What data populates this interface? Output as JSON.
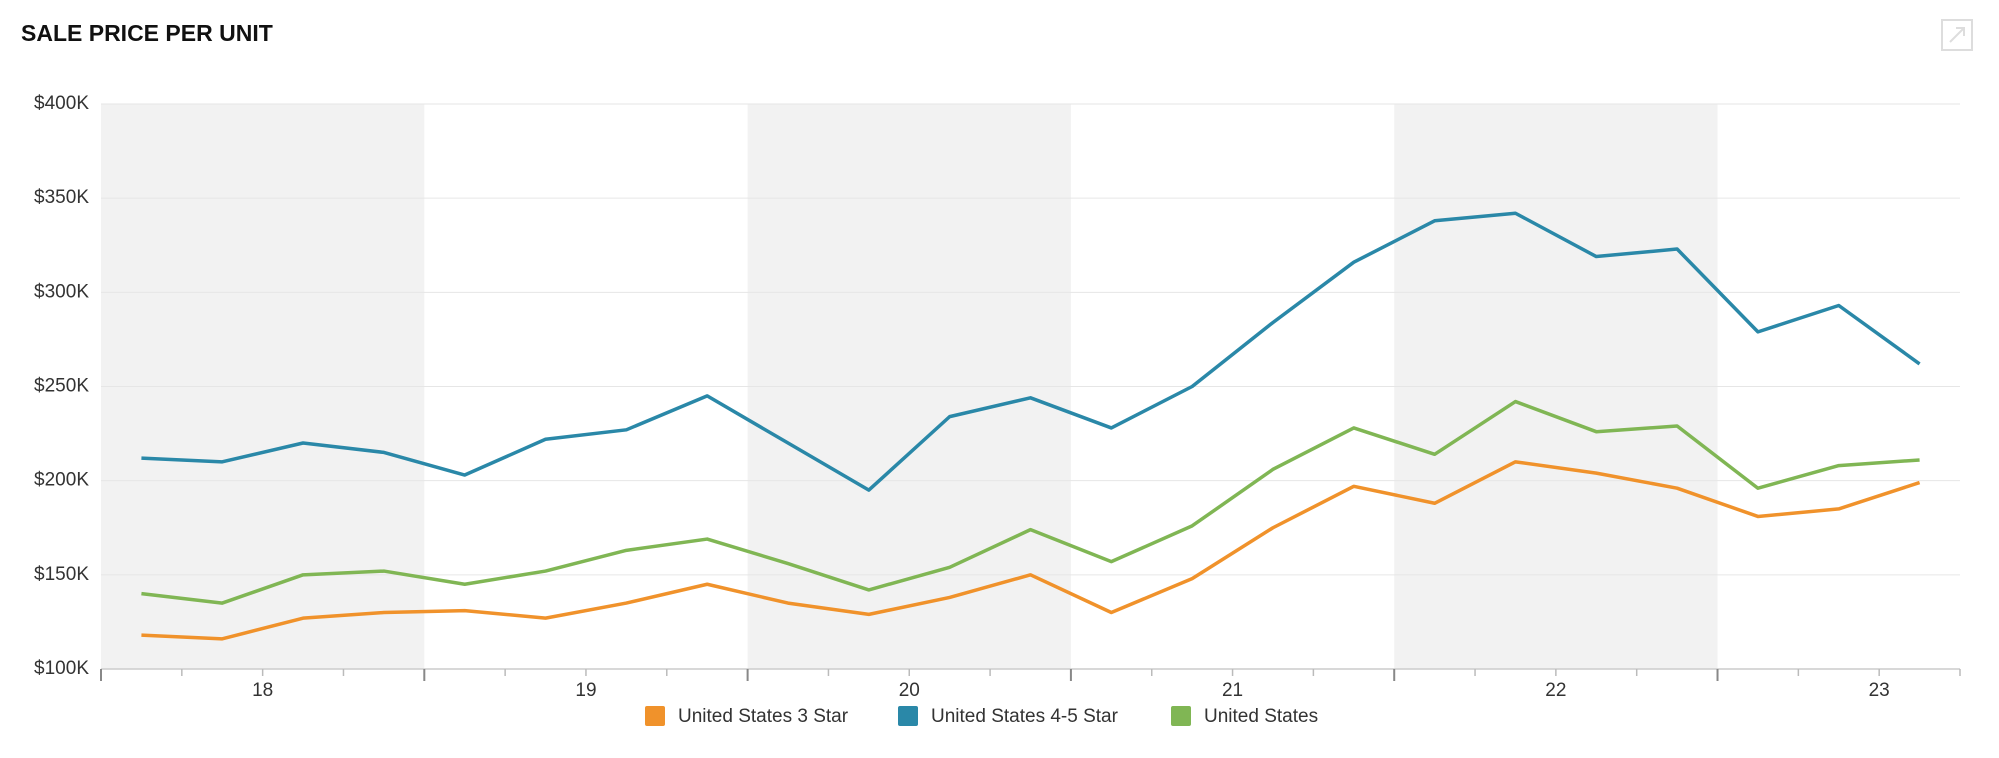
{
  "chart_data": {
    "type": "line",
    "title": "SALE PRICE PER UNIT",
    "categories": [
      null,
      null,
      null,
      null,
      null,
      null,
      null,
      null,
      null,
      null,
      null,
      null,
      null,
      null,
      null,
      null,
      null,
      null,
      null,
      null,
      null,
      null,
      null
    ],
    "year_labels": [
      "18",
      "19",
      "20",
      "21",
      "22",
      "23"
    ],
    "series": [
      {
        "name": "United States 3 Star",
        "color": "#f0922b",
        "values": [
          118,
          116,
          127,
          130,
          131,
          127,
          135,
          145,
          135,
          129,
          138,
          150,
          130,
          148,
          175,
          197,
          188,
          210,
          204,
          196,
          181,
          185,
          199
        ]
      },
      {
        "name": "United States 4-5 Star",
        "color": "#2a88a8",
        "values": [
          212,
          210,
          220,
          215,
          203,
          222,
          227,
          245,
          220,
          195,
          234,
          244,
          228,
          250,
          284,
          316,
          338,
          342,
          319,
          323,
          279,
          293,
          262
        ]
      },
      {
        "name": "United States",
        "color": "#80b654",
        "values": [
          140,
          135,
          150,
          152,
          145,
          152,
          163,
          169,
          156,
          142,
          154,
          174,
          157,
          176,
          206,
          228,
          214,
          242,
          226,
          229,
          196,
          208,
          211
        ]
      }
    ],
    "ylim": [
      100,
      400
    ],
    "yticks": [
      {
        "value": 100,
        "label": "$100K"
      },
      {
        "value": 150,
        "label": "$150K"
      },
      {
        "value": 200,
        "label": "$200K"
      },
      {
        "value": 250,
        "label": "$250K"
      },
      {
        "value": 300,
        "label": "$300K"
      },
      {
        "value": 350,
        "label": "$350K"
      },
      {
        "value": 400,
        "label": "$400K"
      }
    ],
    "grid": true
  }
}
